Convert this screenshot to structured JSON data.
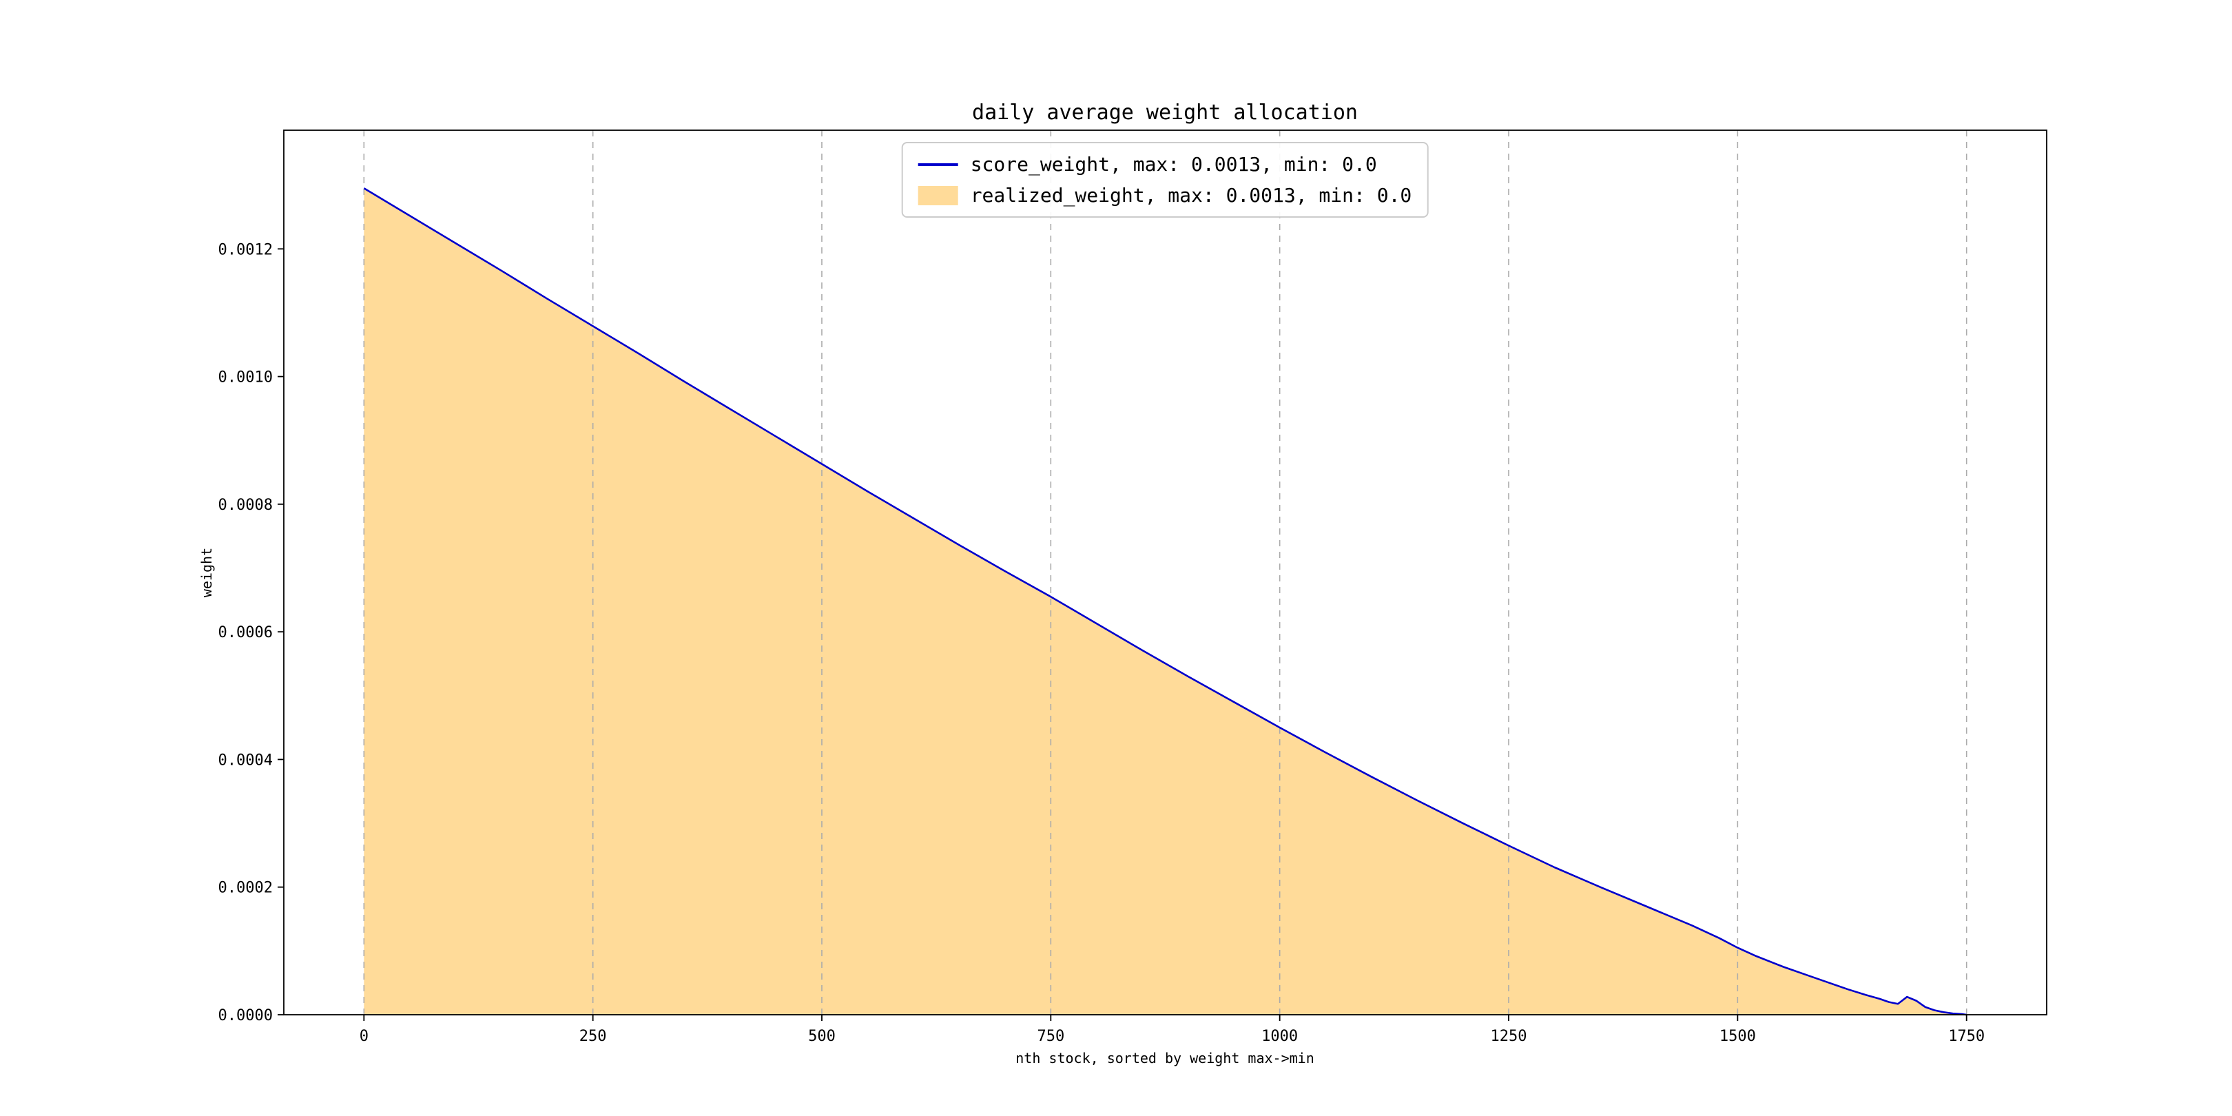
{
  "figure": {
    "title": "daily average weight allocation",
    "x_axis_label": "nth stock, sorted by weight max->min",
    "y_axis_label": "weight"
  },
  "legend": {
    "items": [
      {
        "label": "score_weight, max: 0.0013, min: 0.0",
        "swatch": "line",
        "color": "#0000cc"
      },
      {
        "label": "realized_weight, max: 0.0013, min: 0.0",
        "swatch": "patch",
        "color": "#ffdb99"
      }
    ]
  },
  "chart_data": {
    "type": "area",
    "title": "daily average weight allocation",
    "xlabel": "nth stock, sorted by weight max->min",
    "ylabel": "weight",
    "xlim": [
      -87.5,
      1837.5
    ],
    "ylim": [
      0,
      0.001386
    ],
    "grid": "vertical-dashed",
    "legend_position": "upper center",
    "x_ticks": [
      0,
      250,
      500,
      750,
      1000,
      1250,
      1500,
      1750
    ],
    "x_tick_labels": [
      "0",
      "250",
      "500",
      "750",
      "1000",
      "1250",
      "1500",
      "1750"
    ],
    "y_ticks": [
      0,
      0.0002,
      0.0004,
      0.0006,
      0.0008,
      0.001,
      0.0012
    ],
    "y_tick_labels": [
      "0.0000",
      "0.0002",
      "0.0004",
      "0.0006",
      "0.0008",
      "0.0010",
      "0.0012"
    ],
    "x": [
      0,
      50,
      100,
      150,
      200,
      250,
      300,
      350,
      400,
      450,
      500,
      550,
      600,
      650,
      700,
      750,
      800,
      850,
      900,
      950,
      1000,
      1050,
      1100,
      1150,
      1200,
      1250,
      1300,
      1350,
      1400,
      1450,
      1480,
      1500,
      1520,
      1550,
      1580,
      1600,
      1620,
      1640,
      1655,
      1665,
      1675,
      1685,
      1695,
      1705,
      1715,
      1725,
      1735,
      1745,
      1750
    ],
    "series": [
      {
        "name": "score_weight, max: 0.0013, min: 0.0",
        "style": "line",
        "color": "#0000cc",
        "max": 0.0013,
        "min": 0.0,
        "values": [
          0.001295,
          0.001252,
          0.001209,
          0.001166,
          0.001122,
          0.001079,
          0.001036,
          0.000992,
          0.000949,
          0.000906,
          0.000863,
          0.00082,
          0.000778,
          0.000736,
          0.000695,
          0.000655,
          0.000613,
          0.000571,
          0.00053,
          0.00049,
          0.00045,
          0.000411,
          0.000373,
          0.000336,
          0.0003,
          0.000265,
          0.000231,
          0.0002,
          0.00017,
          0.00014,
          0.00012,
          0.000105,
          9.2e-05,
          7.5e-05,
          6e-05,
          5e-05,
          4e-05,
          3.1e-05,
          2.5e-05,
          2e-05,
          1.7e-05,
          2.8e-05,
          2.2e-05,
          1.2e-05,
          7e-06,
          4e-06,
          2e-06,
          1e-06,
          0.0
        ]
      },
      {
        "name": "realized_weight, max: 0.0013, min: 0.0",
        "style": "area",
        "color": "#ffdb99",
        "max": 0.0013,
        "min": 0.0,
        "values": [
          0.001295,
          0.001252,
          0.001209,
          0.001166,
          0.001122,
          0.001079,
          0.001036,
          0.000992,
          0.000949,
          0.000906,
          0.000863,
          0.00082,
          0.000778,
          0.000736,
          0.000695,
          0.000655,
          0.000613,
          0.000571,
          0.00053,
          0.00049,
          0.00045,
          0.000411,
          0.000373,
          0.000336,
          0.0003,
          0.000265,
          0.000231,
          0.0002,
          0.00017,
          0.00014,
          0.00012,
          0.000105,
          9.2e-05,
          7.5e-05,
          6e-05,
          5e-05,
          4e-05,
          3.1e-05,
          2.5e-05,
          2e-05,
          1.7e-05,
          2.8e-05,
          2.2e-05,
          1.2e-05,
          7e-06,
          4e-06,
          2e-06,
          1e-06,
          0.0
        ]
      }
    ]
  }
}
